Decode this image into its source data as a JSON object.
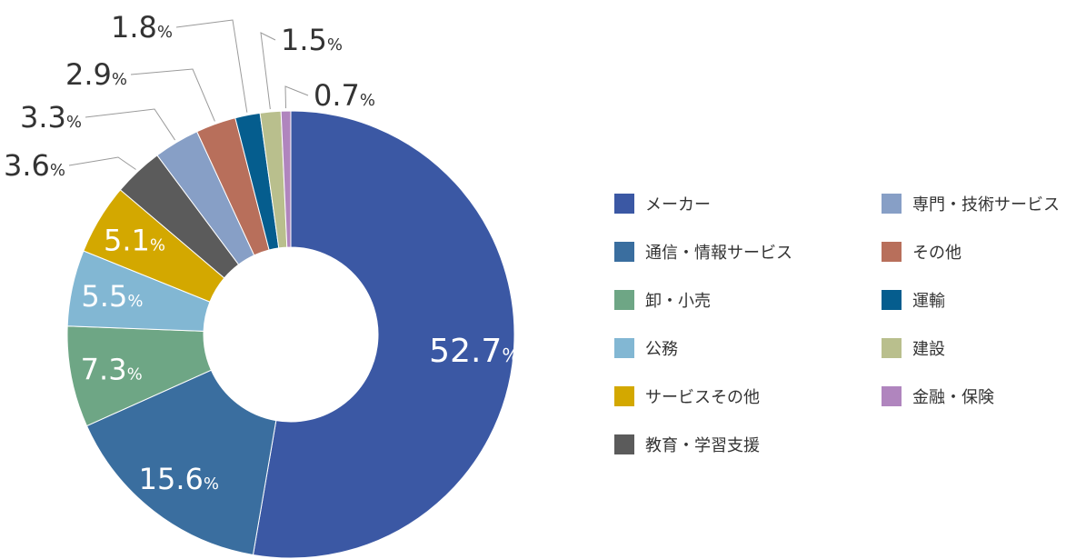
{
  "chart_data": {
    "type": "pie",
    "variant": "donut",
    "title": "",
    "unit": "%",
    "slices": [
      {
        "label": "メーカー",
        "value": 52.7,
        "color": "#3b58a4",
        "label_inside": true
      },
      {
        "label": "通信・情報サービス",
        "value": 15.6,
        "color": "#3a6e9f",
        "label_inside": true
      },
      {
        "label": "卸・小売",
        "value": 7.3,
        "color": "#6ea685",
        "label_inside": true
      },
      {
        "label": "公務",
        "value": 5.5,
        "color": "#82b7d3",
        "label_inside": true
      },
      {
        "label": "サービスその他",
        "value": 5.1,
        "color": "#d3a800",
        "label_inside": true
      },
      {
        "label": "教育・学習支援",
        "value": 3.6,
        "color": "#5b5b5b",
        "label_inside": false
      },
      {
        "label": "専門・技術サービス",
        "value": 3.3,
        "color": "#879fc6",
        "label_inside": false
      },
      {
        "label": "その他",
        "value": 2.9,
        "color": "#b86f5b",
        "label_inside": false
      },
      {
        "label": "運輸",
        "value": 1.8,
        "color": "#055d8e",
        "label_inside": false
      },
      {
        "label": "建設",
        "value": 1.5,
        "color": "#b9bf8d",
        "label_inside": false
      },
      {
        "label": "金融・保険",
        "value": 0.7,
        "color": "#b085be",
        "label_inside": false
      }
    ],
    "legend_placement": "right",
    "legend_columns": 2,
    "grid": false
  }
}
